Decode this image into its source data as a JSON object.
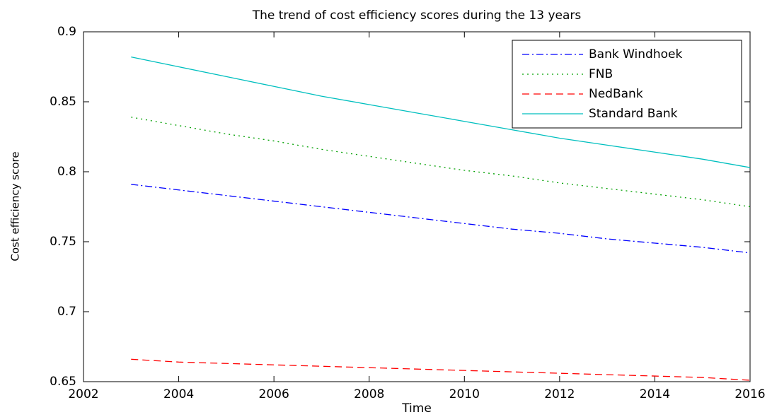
{
  "chart_data": {
    "type": "line",
    "title": "The trend of cost efficiency scores during the 13 years",
    "x_label": "Time",
    "y_label": "Cost efficiency score",
    "x": [
      2003,
      2004,
      2005,
      2006,
      2007,
      2008,
      2009,
      2010,
      2011,
      2012,
      2013,
      2014,
      2015,
      2016
    ],
    "series": [
      {
        "name": "Bank Windhoek",
        "color": "#0000ff",
        "linestyle": "dashdot",
        "values": [
          0.791,
          0.787,
          0.783,
          0.779,
          0.775,
          0.771,
          0.767,
          0.763,
          0.759,
          0.756,
          0.752,
          0.749,
          0.746,
          0.742
        ]
      },
      {
        "name": "FNB",
        "color": "#00a000",
        "linestyle": "dotted",
        "values": [
          0.839,
          0.833,
          0.827,
          0.822,
          0.816,
          0.811,
          0.806,
          0.801,
          0.797,
          0.792,
          0.788,
          0.784,
          0.78,
          0.775
        ]
      },
      {
        "name": "NedBank",
        "color": "#ff0000",
        "linestyle": "dashed",
        "values": [
          0.666,
          0.664,
          0.663,
          0.662,
          0.661,
          0.66,
          0.659,
          0.658,
          0.657,
          0.656,
          0.655,
          0.654,
          0.653,
          0.651
        ]
      },
      {
        "name": "Standard Bank",
        "color": "#00bfbf",
        "linestyle": "solid",
        "values": [
          0.882,
          0.875,
          0.868,
          0.861,
          0.854,
          0.848,
          0.842,
          0.836,
          0.83,
          0.824,
          0.819,
          0.814,
          0.809,
          0.803
        ]
      }
    ],
    "xlim": [
      2002,
      2016
    ],
    "xticks": [
      2002,
      2004,
      2006,
      2008,
      2010,
      2012,
      2014,
      2016
    ],
    "ylim": [
      0.65,
      0.9
    ],
    "yticks": [
      0.65,
      0.7,
      0.75,
      0.8,
      0.85,
      0.9
    ],
    "grid": false,
    "legend": "northeast"
  }
}
